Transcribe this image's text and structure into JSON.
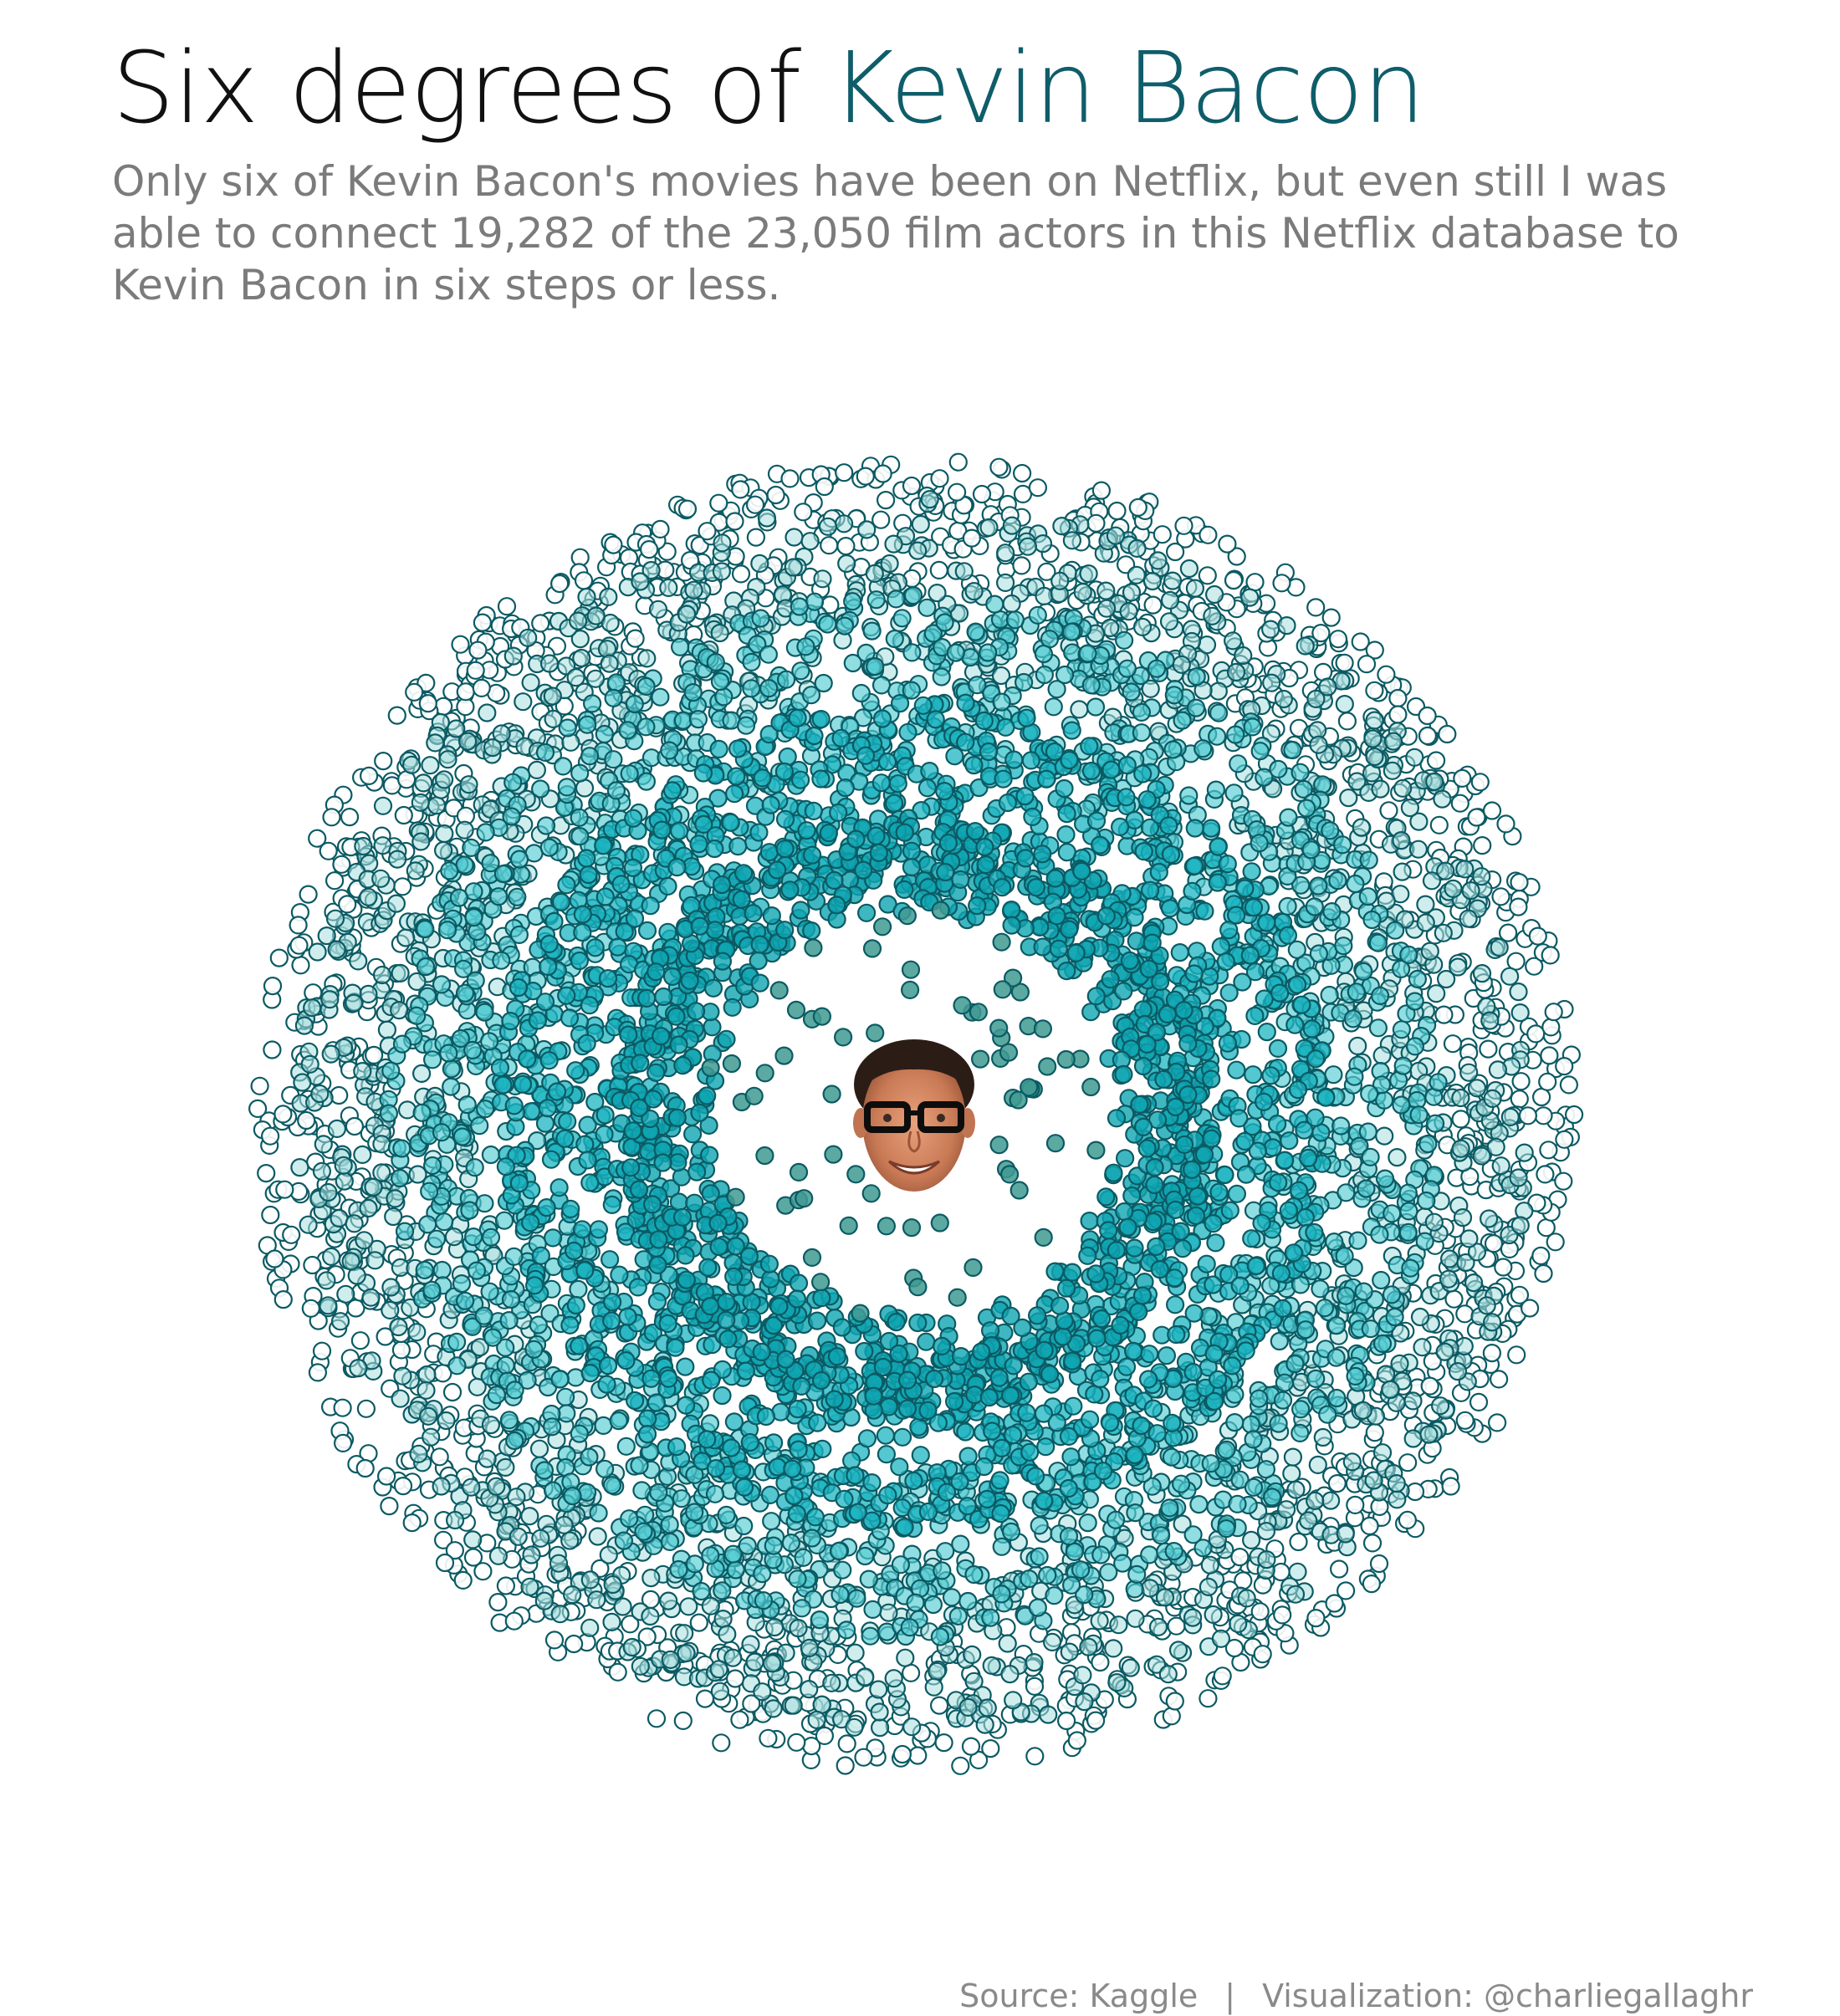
{
  "title": {
    "prefix": "Six degrees of ",
    "highlight": "Kevin Bacon",
    "highlight_color": "#0f5d6a"
  },
  "subtitle": "Only six of Kevin Bacon's movies have been on Netflix, but even still I was able to connect 19,282 of the 23,050 film actors in this Netflix database to Kevin Bacon in six steps or less.",
  "footer": {
    "source": "Source: Kaggle",
    "separator": "|",
    "credit": "Visualization: @charliegallaghr"
  },
  "center_image": "kevin-bacon-face",
  "chart_data": {
    "type": "scatter",
    "layout": "radial-rings",
    "title": "Six degrees of Kevin Bacon",
    "center": "Kevin Bacon",
    "rings": [
      {
        "degree": 1,
        "fill": "#3f9a92",
        "fill_opacity": 0.85,
        "stroke": "#0b5a63"
      },
      {
        "degree": 2,
        "fill": "#0fa5b2",
        "fill_opacity": 0.8,
        "stroke": "#0b5a63"
      },
      {
        "degree": 3,
        "fill": "#1cb4c0",
        "fill_opacity": 0.75,
        "stroke": "#0b5a63"
      },
      {
        "degree": 4,
        "fill": "#54cdd2",
        "fill_opacity": 0.65,
        "stroke": "#0b5a63"
      },
      {
        "degree": 5,
        "fill": "#a9dfdf",
        "fill_opacity": 0.55,
        "stroke": "#0b5a63"
      },
      {
        "degree": 6,
        "fill": "#ffffff",
        "fill_opacity": 0.9,
        "stroke": "#0b5a63"
      }
    ]
  }
}
